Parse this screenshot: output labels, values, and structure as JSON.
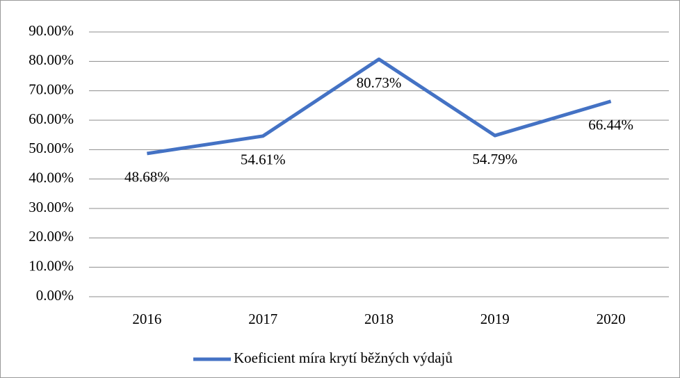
{
  "chart_data": {
    "type": "line",
    "categories": [
      "2016",
      "2017",
      "2018",
      "2019",
      "2020"
    ],
    "series": [
      {
        "name": "Koeficient míra krytí běžných výdajů",
        "color": "#4472c4",
        "values": [
          48.68,
          54.61,
          80.73,
          54.79,
          66.44
        ],
        "value_labels": [
          "48.68%",
          "54.61%",
          "80.73%",
          "54.79%",
          "66.44%"
        ]
      }
    ],
    "ylim": [
      0,
      90
    ],
    "yticks": [
      {
        "value": 0,
        "label": "0.00%"
      },
      {
        "value": 10,
        "label": "10.00%"
      },
      {
        "value": 20,
        "label": "20.00%"
      },
      {
        "value": 30,
        "label": "30.00%"
      },
      {
        "value": 40,
        "label": "40.00%"
      },
      {
        "value": 50,
        "label": "50.00%"
      },
      {
        "value": 60,
        "label": "60.00%"
      },
      {
        "value": 70,
        "label": "70.00%"
      },
      {
        "value": 80,
        "label": "80.00%"
      },
      {
        "value": 90,
        "label": "90.00%"
      }
    ],
    "grid": true,
    "legend": "bottom"
  }
}
